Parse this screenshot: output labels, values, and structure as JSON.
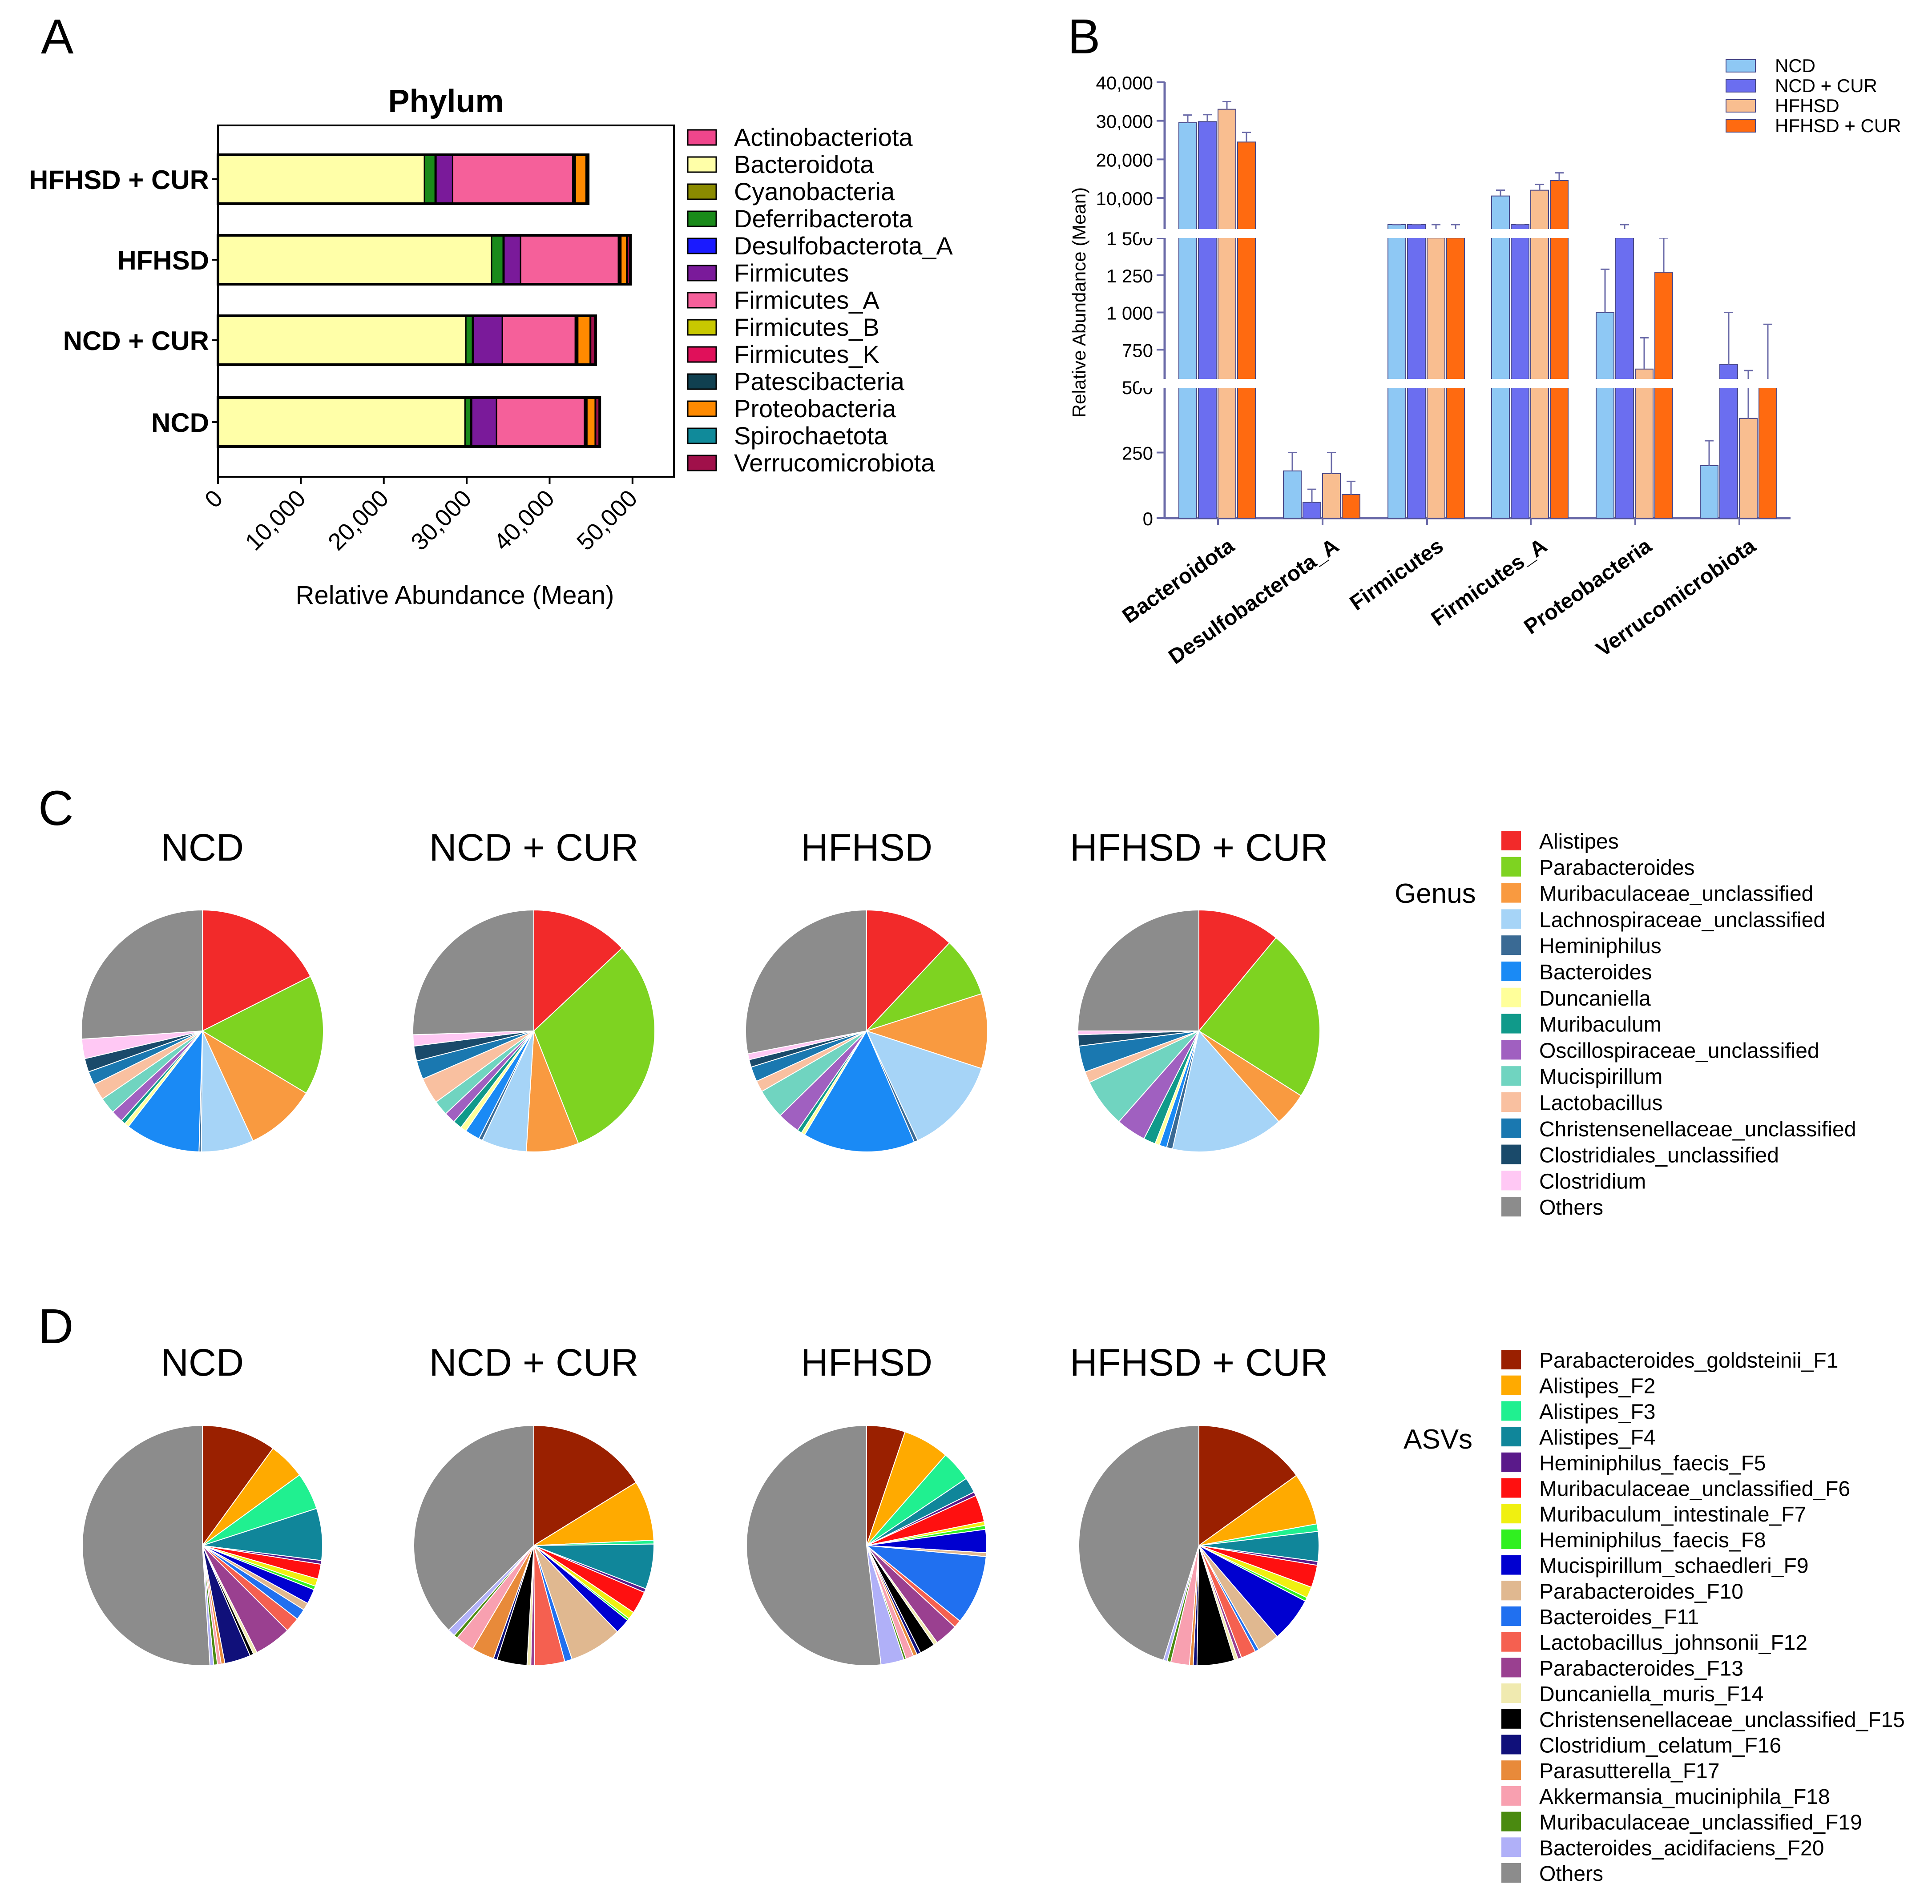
{
  "panels": {
    "A": {
      "letter": "A"
    },
    "B": {
      "letter": "B"
    },
    "C": {
      "letter": "C",
      "legend_title": "Genus"
    },
    "D": {
      "letter": "D",
      "legend_title": "ASVs"
    }
  },
  "chart_data": [
    {
      "panel": "A",
      "type": "bar",
      "orientation": "horizontal",
      "stacked": true,
      "title": "Phylum",
      "xlabel": "Relative Abundance (Mean)",
      "xlim": [
        0,
        55000
      ],
      "xticks": [
        0,
        10000,
        20000,
        30000,
        40000,
        50000
      ],
      "xtick_labels": [
        "0",
        "10,000",
        "20,000",
        "30,000",
        "40,000",
        "50,000"
      ],
      "legend_position": "right",
      "categories": [
        "HFHSD + CUR",
        "HFHSD",
        "NCD + CUR",
        "NCD"
      ],
      "series": [
        {
          "name": "Actinobacteriota",
          "color": "#f0468c",
          "values": [
            0,
            0,
            0,
            0
          ]
        },
        {
          "name": "Bacteroidota",
          "color": "#ffffa8",
          "values": [
            24900,
            33000,
            29900,
            29800
          ]
        },
        {
          "name": "Cyanobacteria",
          "color": "#8b8b00",
          "values": [
            0,
            0,
            0,
            0
          ]
        },
        {
          "name": "Deferribacterota",
          "color": "#1a8a1a",
          "values": [
            1300,
            1400,
            800,
            700
          ]
        },
        {
          "name": "Desulfobacterota_A",
          "color": "#1a1aff",
          "values": [
            100,
            100,
            100,
            100
          ]
        },
        {
          "name": "Firmicutes",
          "color": "#7a1a9a",
          "values": [
            2000,
            2000,
            3500,
            3000
          ]
        },
        {
          "name": "Firmicutes_A",
          "color": "#f5609a",
          "values": [
            14500,
            11800,
            8800,
            10600
          ]
        },
        {
          "name": "Firmicutes_B",
          "color": "#c8c800",
          "values": [
            100,
            100,
            100,
            100
          ]
        },
        {
          "name": "Firmicutes_K",
          "color": "#e0105a",
          "values": [
            100,
            100,
            100,
            100
          ]
        },
        {
          "name": "Patescibacteria",
          "color": "#104050",
          "values": [
            100,
            100,
            100,
            100
          ]
        },
        {
          "name": "Proteobacteria",
          "color": "#ff8a00",
          "values": [
            1300,
            700,
            1500,
            1000
          ]
        },
        {
          "name": "Spirochaetota",
          "color": "#108a9a",
          "values": [
            50,
            50,
            50,
            50
          ]
        },
        {
          "name": "Verrucomicrobiota",
          "color": "#a0104a",
          "values": [
            200,
            400,
            600,
            500
          ]
        }
      ]
    },
    {
      "panel": "B",
      "type": "bar",
      "ylabel": "Relative Abundance (Mean)",
      "y_axis_broken": true,
      "yticks": [
        0,
        250,
        500,
        750,
        1000,
        1250,
        1500,
        10000,
        20000,
        30000,
        40000
      ],
      "ytick_labels": [
        "0",
        "250",
        "500",
        "750",
        "1 000",
        "1 250",
        "1 500",
        "10,000",
        "20,000",
        "30,000",
        "40,000"
      ],
      "legend_position": "top-right",
      "categories": [
        "Bacteroidota",
        "Desulfobacterota_A",
        "Firmicutes",
        "Firmicutes_A",
        "Proteobacteria",
        "Verrucomicrobiota"
      ],
      "series": [
        {
          "name": "NCD",
          "color": "#8ec8f4",
          "values": [
            29500,
            180,
            2500,
            10500,
            1000,
            200
          ],
          "errors": [
            2000,
            70,
            200,
            1500,
            290,
            95
          ]
        },
        {
          "name": "NCD + CUR",
          "color": "#6b6ef0",
          "values": [
            29800,
            60,
            2400,
            8500,
            1500,
            650
          ],
          "errors": [
            1800,
            50,
            250,
            900,
            10,
            350
          ]
        },
        {
          "name": "HFHSD",
          "color": "#f9be90",
          "values": [
            33000,
            170,
            1500,
            12000,
            620,
            380
          ],
          "errors": [
            2000,
            80,
            100,
            1500,
            210,
            230
          ]
        },
        {
          "name": "HFHSD + CUR",
          "color": "#ff6a10",
          "values": [
            24500,
            90,
            1500,
            14500,
            1270,
            500
          ],
          "errors": [
            2500,
            50,
            100,
            2000,
            230,
            420
          ]
        }
      ]
    },
    {
      "panel": "C",
      "type": "pie",
      "legend_title": "Genus",
      "legend_position": "right",
      "labels": [
        "Alistipes",
        "Parabacteroides",
        "Muribaculaceae_unclassified",
        "Lachnospiraceae_unclassified",
        "Heminiphilus",
        "Bacteroides",
        "Duncaniella",
        "Muribaculum",
        "Oscillospiraceae_unclassified",
        "Mucispirillum",
        "Lactobacillus",
        "Christensenellaceae_unclassified",
        "Clostridiales_unclassified",
        "Clostridium",
        "Others"
      ],
      "colors": [
        "#f22a2a",
        "#7ed321",
        "#f99a40",
        "#a6d4f7",
        "#3a6a94",
        "#1a8af5",
        "#ffff9a",
        "#109a8a",
        "#a060c0",
        "#70d4c0",
        "#f9c0a0",
        "#1a78b0",
        "#1a4a6a",
        "#ffc8f4",
        "#8c8c8c"
      ],
      "pies": [
        {
          "title": "NCD",
          "values": [
            17.5,
            16,
            9.5,
            7,
            0.3,
            10,
            0.6,
            0.6,
            1.6,
            2.2,
            2.2,
            1.8,
            1.8,
            2.6,
            26
          ]
        },
        {
          "title": "NCD + CUR",
          "values": [
            13,
            31,
            7,
            6,
            0.5,
            2,
            0.8,
            1.2,
            1.5,
            2.0,
            3.5,
            2.5,
            2.0,
            1.5,
            25.5
          ]
        },
        {
          "title": "HFHSD",
          "values": [
            12,
            8,
            10,
            13,
            0.5,
            15,
            0.5,
            0.6,
            3,
            4,
            1.5,
            2,
            1,
            0.8,
            28
          ]
        },
        {
          "title": "HFHSD + CUR",
          "values": [
            11,
            23,
            4.5,
            15,
            0.8,
            1.0,
            0.6,
            1.6,
            4,
            6.5,
            1.5,
            3.5,
            1.5,
            0.5,
            25
          ]
        }
      ]
    },
    {
      "panel": "D",
      "type": "pie",
      "legend_title": "ASVs",
      "legend_position": "right",
      "labels": [
        "Parabacteroides_goldsteinii_F1",
        "Alistipes_F2",
        "Alistipes_F3",
        "Alistipes_F4",
        "Heminiphilus_faecis_F5",
        "Muribaculaceae_unclassified_F6",
        "Muribaculum_intestinale_F7",
        "Heminiphilus_faecis_F8",
        "Mucispirillum_schaedleri_F9",
        "Parabacteroides_F10",
        "Bacteroides_F11",
        "Lactobacillus_johnsonii_F12",
        "Parabacteroides_F13",
        "Duncaniella_muris_F14",
        "Christensenellaceae_unclassified_F15",
        "Clostridium_celatum_F16",
        "Parasutterella_F17",
        "Akkermansia_muciniphila_F18",
        "Muribaculaceae_unclassified_F19",
        "Bacteroides_acidifaciens_F20",
        "Others"
      ],
      "colors": [
        "#9a2000",
        "#ffaa00",
        "#20f090",
        "#10869a",
        "#5a1a8a",
        "#ff1010",
        "#f0f010",
        "#30f020",
        "#0000d0",
        "#e0b890",
        "#2070f0",
        "#f56050",
        "#9a4090",
        "#f0eab0",
        "#000000",
        "#10107a",
        "#e88a3a",
        "#f8a0b0",
        "#4a8a10",
        "#b0b0f8",
        "#8c8c8c"
      ],
      "pies": [
        {
          "title": "NCD",
          "values": [
            10,
            5,
            5,
            7,
            0.5,
            2,
            1,
            0.5,
            2,
            1,
            1.5,
            2,
            5,
            0.5,
            0.5,
            3.5,
            0.5,
            0.5,
            0.5,
            0.5,
            51
          ]
        },
        {
          "title": "NCD + CUR",
          "values": [
            16,
            8,
            0.5,
            6,
            0.5,
            3,
            1,
            0.3,
            2,
            7,
            1,
            4,
            0.5,
            0.5,
            4,
            0.5,
            3,
            2.5,
            0.5,
            1,
            37
          ]
        },
        {
          "title": "HFHSD",
          "values": [
            5,
            6,
            4,
            2,
            0.5,
            3.5,
            0.5,
            0.5,
            3,
            0.5,
            9,
            1,
            3,
            0.5,
            2,
            0.5,
            0.5,
            1,
            0.3,
            3,
            50
          ]
        },
        {
          "title": "HFHSD + CUR",
          "values": [
            15,
            7,
            1,
            4,
            0.5,
            3,
            1.5,
            0.5,
            6,
            3,
            0.5,
            2,
            0.5,
            0.5,
            5,
            0.5,
            0.5,
            2.5,
            0.5,
            0.5,
            45
          ]
        }
      ]
    }
  ]
}
